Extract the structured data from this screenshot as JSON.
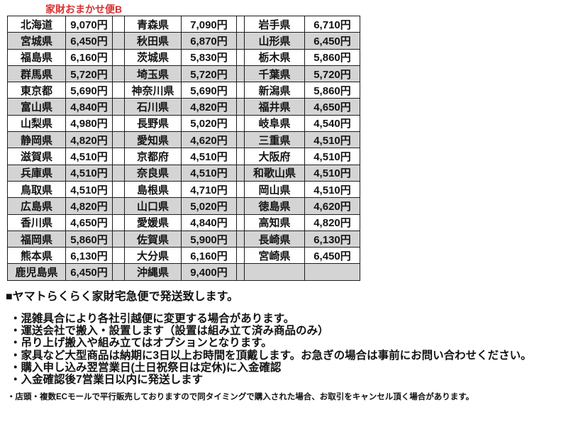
{
  "title": "家財おまかせ便B",
  "colors": {
    "accent_red": "#d93030",
    "row_shade": "#d4d4d4",
    "border": "#1c1c1c",
    "background": "#ffffff"
  },
  "table": {
    "rows": [
      [
        "北海道",
        "9,070円",
        "青森県",
        "7,090円",
        "岩手県",
        "6,710円"
      ],
      [
        "宮城県",
        "6,450円",
        "秋田県",
        "6,870円",
        "山形県",
        "6,450円"
      ],
      [
        "福島県",
        "6,160円",
        "茨城県",
        "5,830円",
        "栃木県",
        "5,860円"
      ],
      [
        "群馬県",
        "5,720円",
        "埼玉県",
        "5,720円",
        "千葉県",
        "5,720円"
      ],
      [
        "東京都",
        "5,690円",
        "神奈川県",
        "5,690円",
        "新潟県",
        "5,860円"
      ],
      [
        "富山県",
        "4,840円",
        "石川県",
        "4,820円",
        "福井県",
        "4,650円"
      ],
      [
        "山梨県",
        "4,980円",
        "長野県",
        "5,020円",
        "岐阜県",
        "4,540円"
      ],
      [
        "静岡県",
        "4,820円",
        "愛知県",
        "4,620円",
        "三重県",
        "4,510円"
      ],
      [
        "滋賀県",
        "4,510円",
        "京都府",
        "4,510円",
        "大阪府",
        "4,510円"
      ],
      [
        "兵庫県",
        "4,510円",
        "奈良県",
        "4,510円",
        "和歌山県",
        "4,510円"
      ],
      [
        "鳥取県",
        "4,510円",
        "島根県",
        "4,710円",
        "岡山県",
        "4,510円"
      ],
      [
        "広島県",
        "4,820円",
        "山口県",
        "5,020円",
        "徳島県",
        "4,620円"
      ],
      [
        "香川県",
        "4,650円",
        "愛媛県",
        "4,840円",
        "高知県",
        "4,820円"
      ],
      [
        "福岡県",
        "5,860円",
        "佐賀県",
        "5,900円",
        "長崎県",
        "6,130円"
      ],
      [
        "熊本県",
        "6,130円",
        "大分県",
        "6,160円",
        "宮崎県",
        "6,450円"
      ],
      [
        "鹿児島県",
        "6,450円",
        "沖縄県",
        "9,400円",
        "",
        ""
      ]
    ]
  },
  "notes": {
    "heading": "■ヤマトらくらく家財宅急便で発送致します。",
    "bullets": [
      "・混雑具合により各社引越便に変更する場合があります。",
      "・運送会社で搬入・設置します（設置は組み立て済み商品のみ）",
      "・吊り上げ搬入や組み立てはオプションとなります。",
      "・家具など大型商品は納期に3日以上お時間を頂戴します。お急ぎの場合は事前にお問い合わせください。",
      "・購入申し込み翌営業日(土日祝祭日は定休)に入金確認",
      "・入金確認後7営業日以内に発送します"
    ],
    "footnote": "・店頭・複数ECモールで平行販売しておりますので同タイミングで購入された場合、お取引をキャンセル頂く場合があります。"
  }
}
